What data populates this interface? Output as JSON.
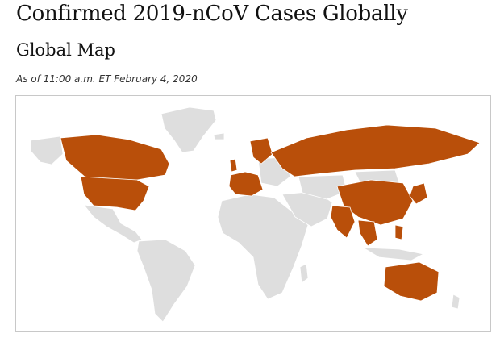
{
  "page": {
    "title": "Confirmed 2019-nCoV Cases Globally",
    "subtitle": "Global Map",
    "as_of": "As of 11:00 a.m. ET February 4, 2020"
  },
  "map": {
    "colors": {
      "affected": "#b94f0a",
      "unaffected": "#dedede",
      "border": "#c8c8c8"
    }
  }
}
